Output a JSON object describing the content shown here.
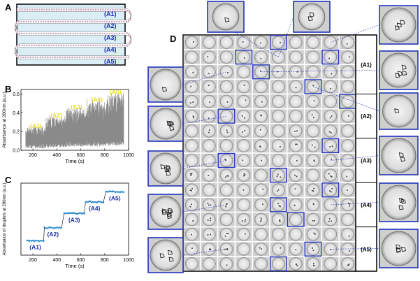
{
  "panels": {
    "a": {
      "letter": "A",
      "channel_labels": [
        "(A1)",
        "(A2)",
        "(A3)",
        "(A4)",
        "(A5)"
      ]
    },
    "b": {
      "letter": "B"
    },
    "c": {
      "letter": "C"
    },
    "d": {
      "letter": "D",
      "row_labels": [
        "(A1)",
        "(A2)",
        "(A3)",
        "(A4)",
        "(A5)"
      ]
    }
  },
  "colors": {
    "channel_fill": "#dbeef6",
    "channel_line": "#a03c74",
    "label_blue": "#1b2fb3",
    "label_yellow": "#e8e020",
    "box_blue": "#2233bb",
    "trace_gray": "#8a8a8a",
    "step_blue": "#2c8fd6"
  },
  "chart_data": [
    {
      "type": "line",
      "ylabel": "Absorbance at 280nm (a.u.)",
      "xlabel": "Time (s)",
      "xlim": [
        100,
        1000
      ],
      "ylim": [
        0,
        0.65
      ],
      "xticks": [
        200,
        400,
        600,
        800,
        1000
      ],
      "yticks": [
        0.0,
        0.2,
        0.4,
        0.6
      ],
      "segments": [
        {
          "label": "(A1)",
          "x": [
            140,
            310
          ],
          "base": 0.02,
          "peak": 0.22
        },
        {
          "label": "(A2)",
          "x": [
            310,
            480
          ],
          "base": 0.03,
          "peak": 0.33
        },
        {
          "label": "(A3)",
          "x": [
            480,
            650
          ],
          "base": 0.04,
          "peak": 0.42
        },
        {
          "label": "(A4)",
          "x": [
            650,
            820
          ],
          "base": 0.04,
          "peak": 0.5
        },
        {
          "label": "(A5)",
          "x": [
            820,
            960
          ],
          "base": 0.05,
          "peak": 0.58
        }
      ]
    },
    {
      "type": "line",
      "ylabel": "Absorbance of droplets at 280nm (a.u.)",
      "xlabel": "Time (s)",
      "xlim": [
        100,
        1000
      ],
      "ylim": [
        0.15,
        0.65
      ],
      "xticks": [
        200,
        400,
        600,
        800,
        1000
      ],
      "steps": [
        {
          "label": "(A1)",
          "x": [
            150,
            290
          ],
          "y": 0.25
        },
        {
          "label": "(A2)",
          "x": [
            295,
            440
          ],
          "y": 0.34
        },
        {
          "label": "(A3)",
          "x": [
            460,
            630
          ],
          "y": 0.44
        },
        {
          "label": "(A4)",
          "x": [
            640,
            790
          ],
          "y": 0.52
        },
        {
          "label": "(A5)",
          "x": [
            810,
            960
          ],
          "y": 0.59
        }
      ]
    }
  ]
}
